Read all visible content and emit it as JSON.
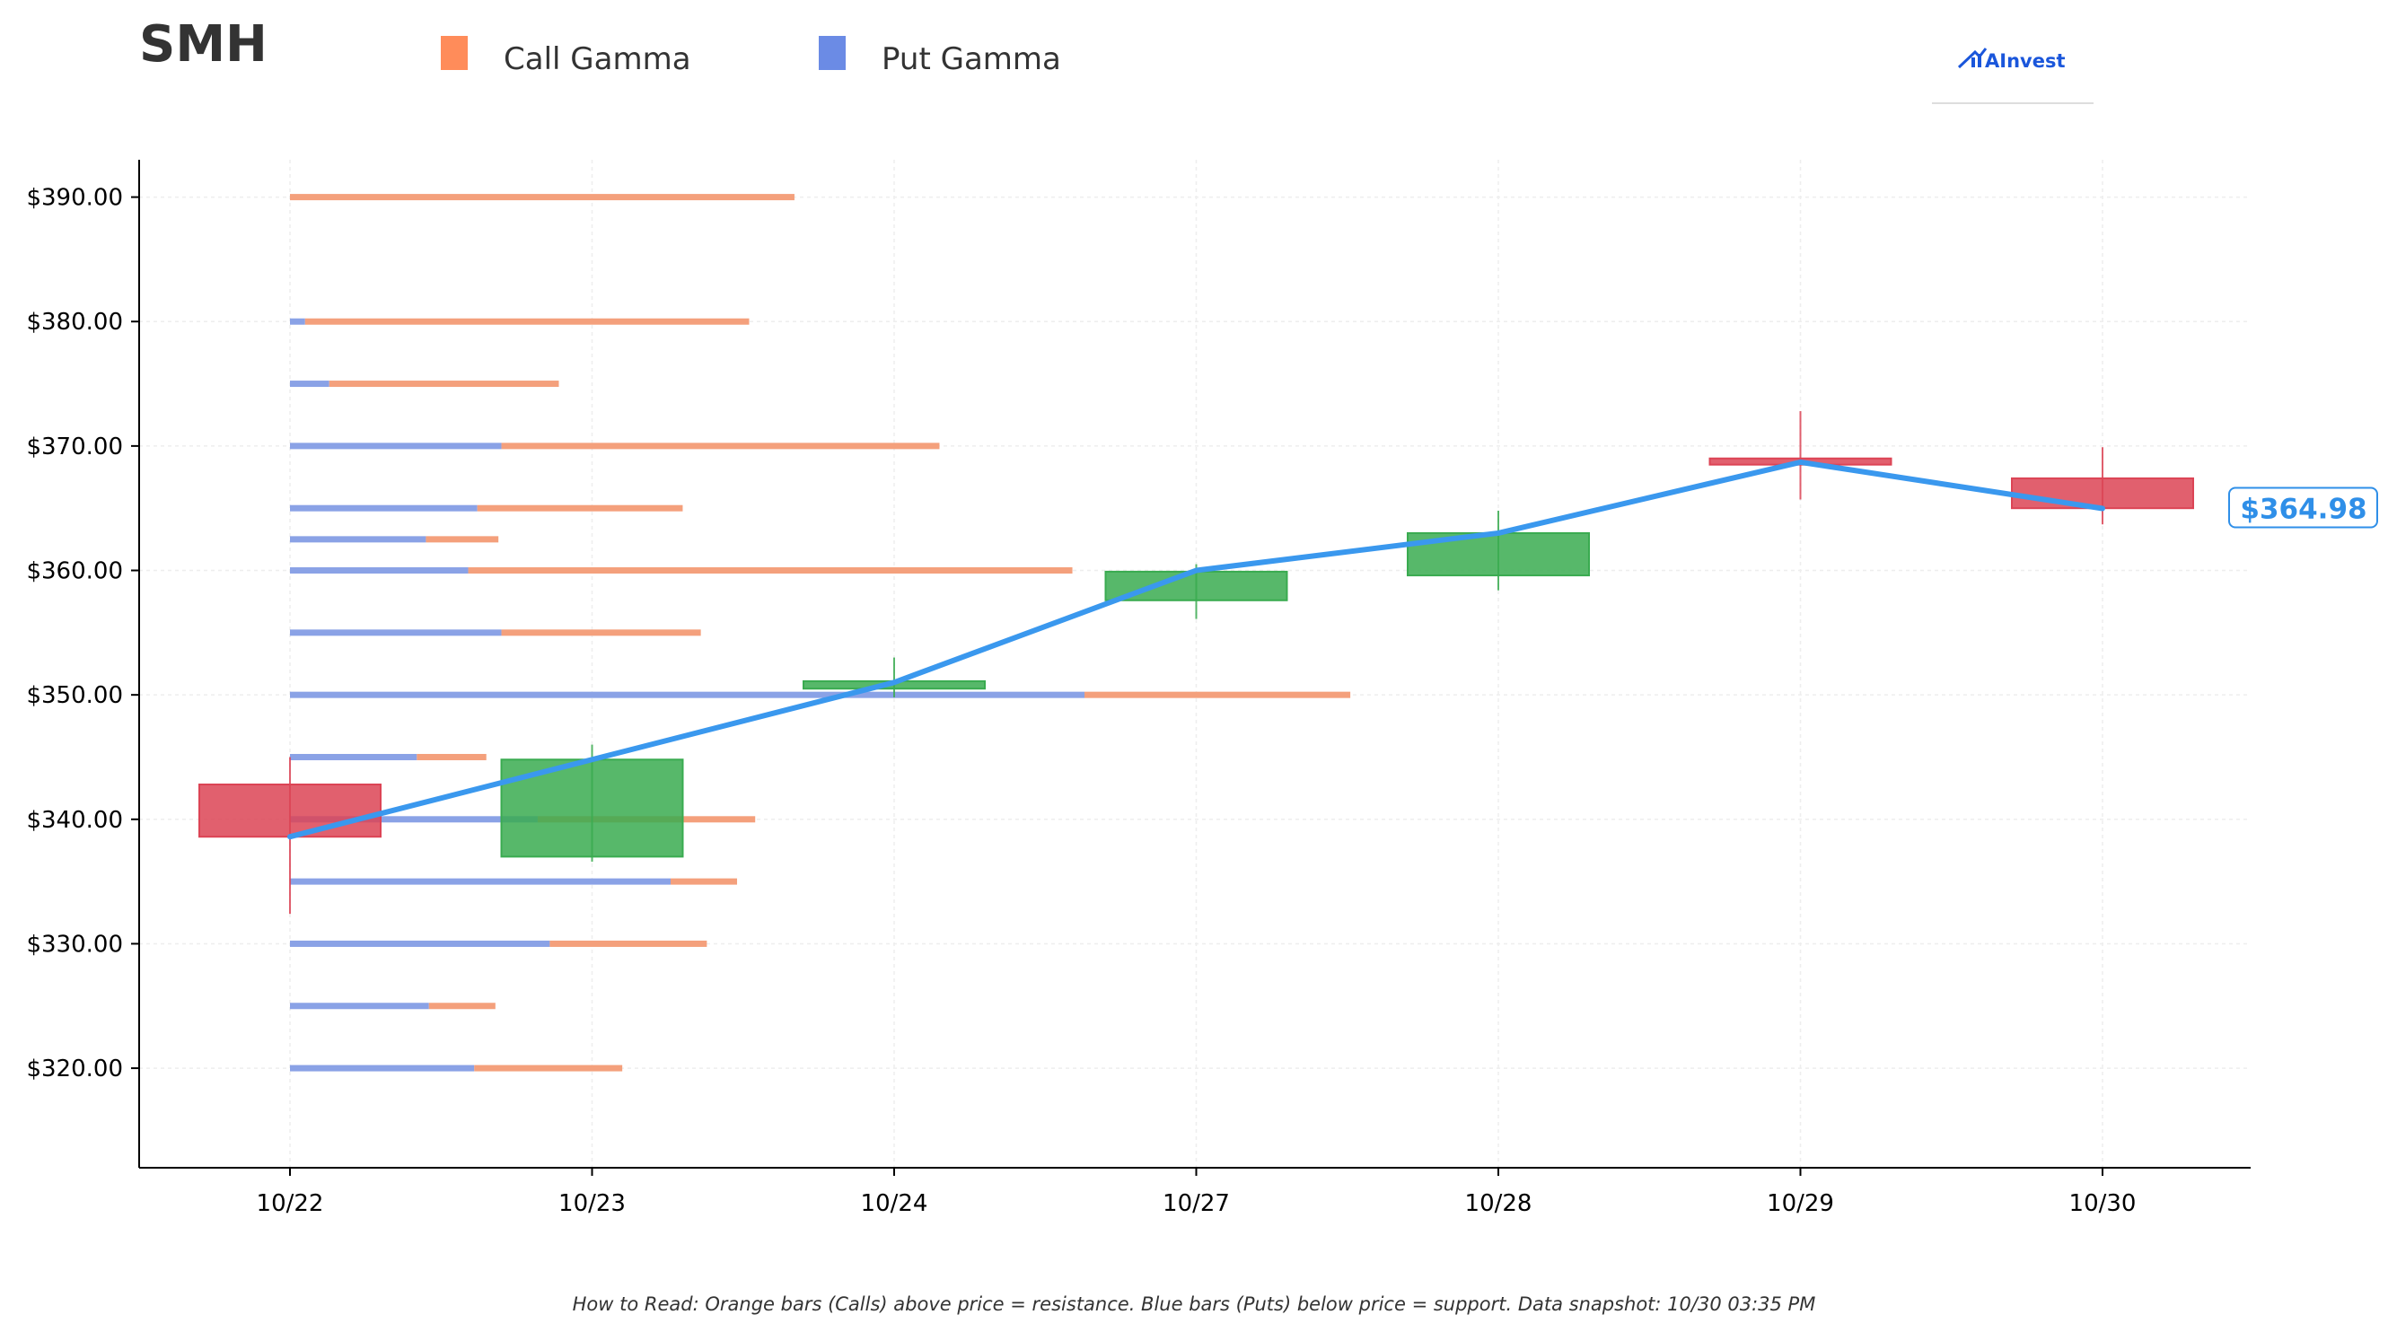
{
  "header": {
    "ticker": "SMH",
    "brand": "AInvest"
  },
  "legend": [
    {
      "label": "Call Gamma",
      "color": "#ff8c5a"
    },
    {
      "label": "Put Gamma",
      "color": "#6b8be5"
    }
  ],
  "footer_note": "How to Read: Orange bars (Calls) above price = resistance. Blue bars (Puts) below price = support. Data snapshot: 10/30 03:35 PM",
  "colors": {
    "call": "#f4a07c",
    "put": "#8aa2e6",
    "up_candle": "#3aab50",
    "down_candle": "#dc4455",
    "price_line": "#3a98ee",
    "price_tag": "#2f8fe8"
  },
  "chart_data": {
    "type": "candlestick",
    "categories": [
      "10/22",
      "10/23",
      "10/24",
      "10/27",
      "10/28",
      "10/29",
      "10/30"
    ],
    "ylim": [
      312,
      393
    ],
    "yticks": [
      320,
      330,
      340,
      350,
      360,
      370,
      380,
      390
    ],
    "ytick_labels": [
      "$320.00",
      "$330.00",
      "$340.00",
      "$350.00",
      "$360.00",
      "$370.00",
      "$380.00",
      "$390.00"
    ],
    "grid": true,
    "candles": [
      {
        "date": "10/22",
        "open": 342.8,
        "close": 338.6,
        "high": 345.0,
        "low": 332.4
      },
      {
        "date": "10/23",
        "open": 337.0,
        "close": 344.8,
        "high": 346.0,
        "low": 336.6
      },
      {
        "date": "10/24",
        "open": 350.5,
        "close": 351.1,
        "high": 353.0,
        "low": 349.8
      },
      {
        "date": "10/27",
        "open": 357.6,
        "close": 359.9,
        "high": 360.5,
        "low": 356.1
      },
      {
        "date": "10/28",
        "open": 359.6,
        "close": 363.0,
        "high": 364.8,
        "low": 358.4
      },
      {
        "date": "10/29",
        "open": 369.0,
        "close": 368.5,
        "high": 372.8,
        "low": 365.7
      },
      {
        "date": "10/30",
        "open": 367.4,
        "close": 365.0,
        "high": 369.9,
        "low": 363.7
      }
    ],
    "price_line": [
      338.6,
      344.8,
      351.0,
      360.0,
      363.0,
      368.7,
      364.98
    ],
    "current_price_label": "$364.98",
    "gamma_units_note": "bar lengths in day-widths from 10/22",
    "gamma_levels": [
      {
        "strike": 390,
        "put": 0.0,
        "call": 1.67
      },
      {
        "strike": 380,
        "put": 0.05,
        "call": 1.47
      },
      {
        "strike": 375,
        "put": 0.13,
        "call": 0.76
      },
      {
        "strike": 370,
        "put": 0.7,
        "call": 1.45
      },
      {
        "strike": 365,
        "put": 0.62,
        "call": 0.68
      },
      {
        "strike": 362.5,
        "put": 0.45,
        "call": 0.24
      },
      {
        "strike": 360,
        "put": 0.59,
        "call": 2.0
      },
      {
        "strike": 355,
        "put": 0.7,
        "call": 0.66
      },
      {
        "strike": 350,
        "put": 2.63,
        "call": 0.88
      },
      {
        "strike": 345,
        "put": 0.42,
        "call": 0.23
      },
      {
        "strike": 340,
        "put": 0.82,
        "call": 0.72
      },
      {
        "strike": 335,
        "put": 1.26,
        "call": 0.22
      },
      {
        "strike": 330,
        "put": 0.86,
        "call": 0.52
      },
      {
        "strike": 325,
        "put": 0.46,
        "call": 0.22
      },
      {
        "strike": 320,
        "put": 0.61,
        "call": 0.49
      }
    ]
  }
}
